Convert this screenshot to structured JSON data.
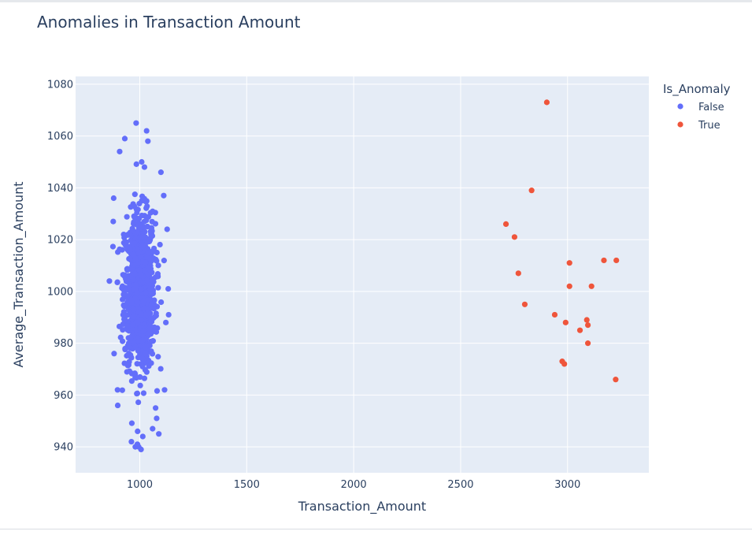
{
  "chart_data": {
    "type": "scatter",
    "title": "Anomalies in Transaction Amount",
    "xlabel": "Transaction_Amount",
    "ylabel": "Average_Transaction_Amount",
    "xlim": [
      700,
      3380
    ],
    "ylim": [
      930,
      1083
    ],
    "x_ticks": [
      1000,
      1500,
      2000,
      2500,
      3000
    ],
    "y_ticks": [
      940,
      960,
      980,
      1000,
      1020,
      1040,
      1060,
      1080
    ],
    "grid": true,
    "plot_background": "#e5ecf6",
    "legend": {
      "title": "Is_Anomaly",
      "position": "right",
      "entries": [
        {
          "label": "False",
          "color": "#636efa"
        },
        {
          "label": "True",
          "color": "#ef553b"
        }
      ]
    },
    "normal_cluster": {
      "label": "False",
      "color": "#636efa",
      "count": 980,
      "x_mean": 1000,
      "x_std": 50,
      "y_mean": 1000,
      "y_std": 20
    },
    "series": [
      {
        "name": "False",
        "color": "#636efa",
        "points": [
          [
            983,
            1065
          ],
          [
            1032,
            1062
          ],
          [
            1038,
            1058
          ],
          [
            930,
            1059
          ],
          [
            906,
            1054
          ],
          [
            1009,
            1050
          ],
          [
            1022,
            1048
          ],
          [
            1099,
            1046
          ],
          [
            878,
            1036
          ],
          [
            1112,
            1037
          ],
          [
            876,
            1027
          ],
          [
            1128,
            1024
          ],
          [
            858,
            1004
          ],
          [
            1133,
            1001
          ],
          [
            1135,
            991
          ],
          [
            1122,
            988
          ],
          [
            880,
            976
          ],
          [
            1116,
            962
          ],
          [
            896,
            962
          ],
          [
            897,
            956
          ],
          [
            1074,
            955
          ],
          [
            1079,
            951
          ],
          [
            1060,
            947
          ],
          [
            1089,
            945
          ],
          [
            990,
            946
          ],
          [
            1014,
            944
          ],
          [
            989,
            941
          ],
          [
            961,
            942
          ],
          [
            1006,
            939
          ],
          [
            995,
            940
          ]
        ]
      },
      {
        "name": "True",
        "color": "#ef553b",
        "points": [
          [
            2903,
            1073
          ],
          [
            2832,
            1039
          ],
          [
            2712,
            1026
          ],
          [
            2752,
            1021
          ],
          [
            3009,
            1011
          ],
          [
            3170,
            1012
          ],
          [
            3228,
            1012
          ],
          [
            2770,
            1007
          ],
          [
            3009,
            1002
          ],
          [
            3112,
            1002
          ],
          [
            2800,
            995
          ],
          [
            2940,
            991
          ],
          [
            2991,
            988
          ],
          [
            3090,
            989
          ],
          [
            3095,
            987
          ],
          [
            3058,
            985
          ],
          [
            3095,
            980
          ],
          [
            2975,
            973
          ],
          [
            2985,
            972
          ],
          [
            3225,
            966
          ]
        ]
      }
    ]
  }
}
